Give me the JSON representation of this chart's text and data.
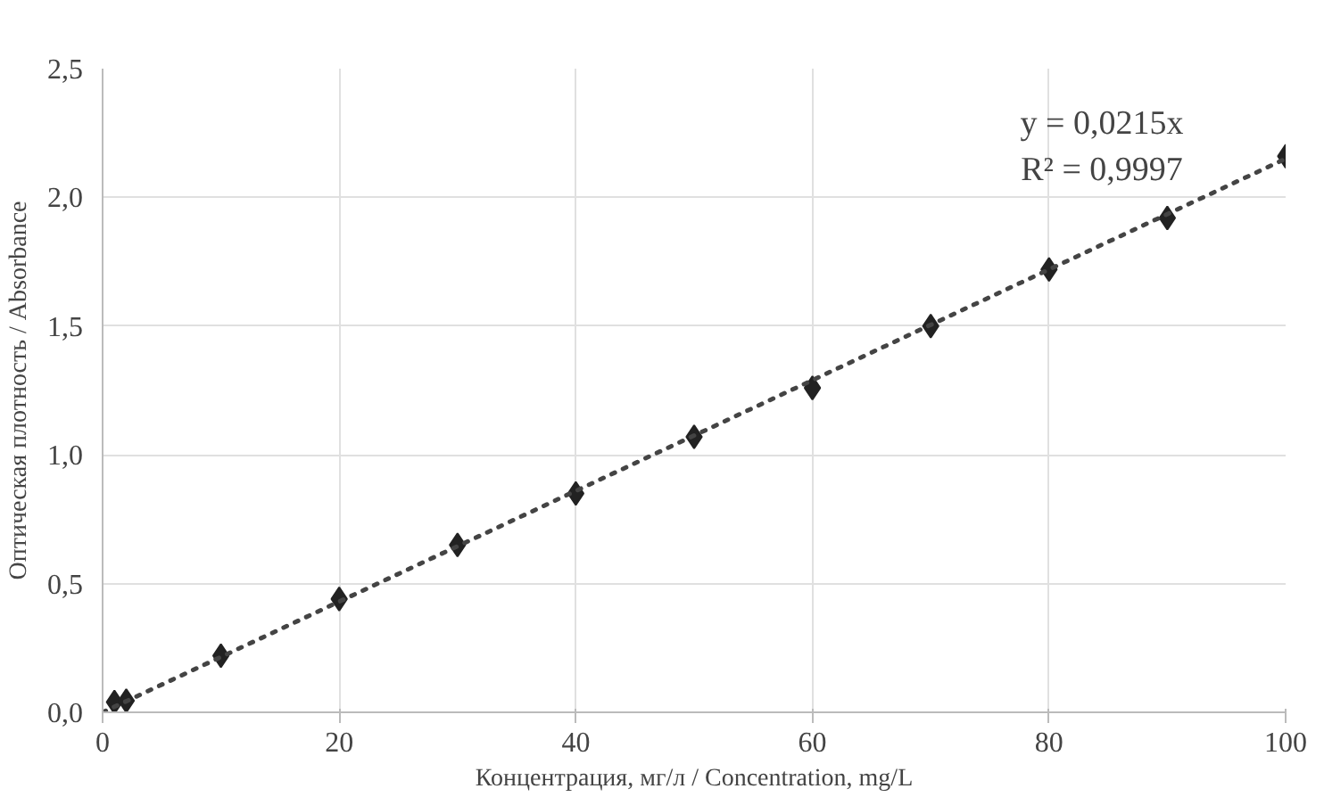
{
  "chart_data": {
    "type": "scatter",
    "xlabel": "Концентрация, мг/л / Concentration, mg/L",
    "ylabel": "Оптическая плотность / Absorbance",
    "series": [
      {
        "color": "#222222",
        "marker": "diamond",
        "x": [
          1,
          2,
          10,
          20,
          30,
          40,
          50,
          60,
          70,
          80,
          90,
          100
        ],
        "values": [
          0.04,
          0.045,
          0.22,
          0.44,
          0.65,
          0.85,
          1.07,
          1.26,
          1.5,
          1.72,
          1.92,
          2.16
        ]
      },
      {
        "type": "line",
        "color": "#444444",
        "line_style": "dotted",
        "marker": "none",
        "x": [
          0,
          100
        ],
        "values": [
          0,
          2.15
        ]
      }
    ],
    "annotations": [
      "y = 0,0215x",
      "R² = 0,9997"
    ],
    "xlim": [
      0,
      100
    ],
    "xticks": [
      0,
      20,
      40,
      60,
      80,
      100
    ],
    "ylim": [
      0,
      2.5
    ],
    "yticks": [
      {
        "value": 0,
        "label": "0,0"
      },
      {
        "value": 0.5,
        "label": "0,5"
      },
      {
        "value": 1,
        "label": "1,0"
      },
      {
        "value": 1.5,
        "label": "1,5"
      },
      {
        "value": 2,
        "label": "2,0"
      },
      {
        "value": 2.5,
        "label": "2,5"
      }
    ],
    "grid": true
  }
}
